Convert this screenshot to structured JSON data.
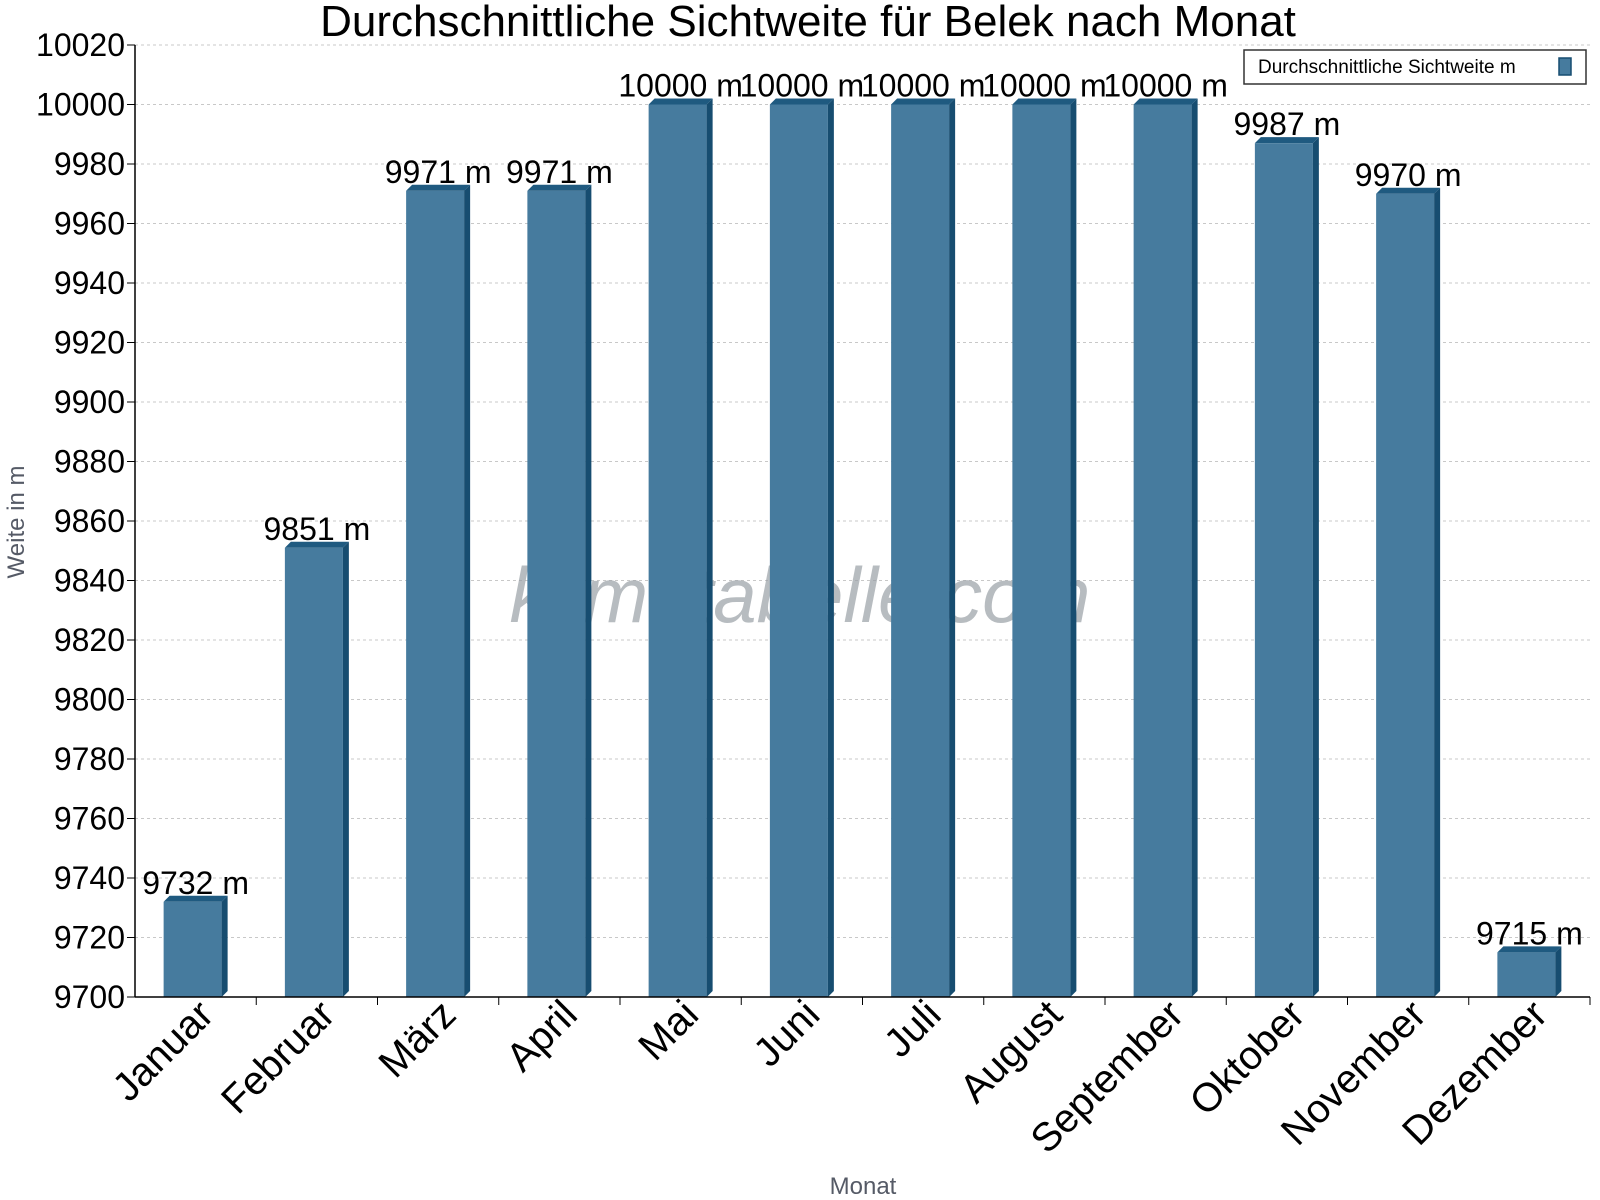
{
  "watermark": "klimatabelle.com",
  "colors": {
    "bar_front": "#467b9e",
    "bar_side": "#174d70",
    "bar_top": "#1f5a80",
    "grid": "#c8c8c8",
    "axis": "#000000"
  },
  "chart_data": {
    "type": "bar",
    "title": "Durchschnittliche Sichtweite für Belek nach Monat",
    "xlabel": "Monat",
    "ylabel": "Weite in m",
    "ylim": [
      9700,
      10020
    ],
    "ytick_step": 20,
    "grid": true,
    "legend_position": "top-right",
    "value_suffix": " m",
    "categories": [
      "Januar",
      "Februar",
      "März",
      "April",
      "Mai",
      "Juni",
      "Juli",
      "August",
      "September",
      "Oktober",
      "November",
      "Dezember"
    ],
    "series": [
      {
        "name": "Durchschnittliche Sichtweite m",
        "values": [
          9732,
          9851,
          9971,
          9971,
          10000,
          10000,
          10000,
          10000,
          10000,
          9987,
          9970,
          9715
        ]
      }
    ]
  }
}
